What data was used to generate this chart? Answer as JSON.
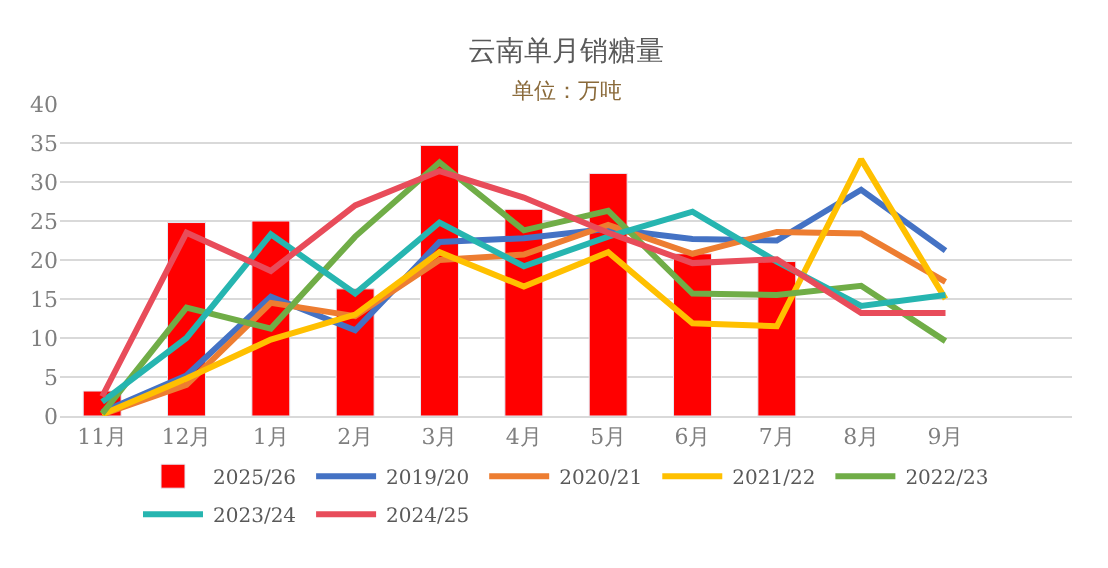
{
  "chart_data": {
    "type": "line",
    "title": "云南单月销糖量",
    "subtitle": "单位：万吨",
    "categories": [
      "11月",
      "12月",
      "1月",
      "2月",
      "3月",
      "4月",
      "5月",
      "6月",
      "7月",
      "8月",
      "9月",
      null
    ],
    "series": [
      {
        "name": "2025/26",
        "type": "bar",
        "color": "#ff0000",
        "values": [
          3.2,
          24.8,
          25.0,
          16.3,
          34.7,
          26.5,
          31.1,
          20.8,
          19.8,
          null,
          null,
          null
        ]
      },
      {
        "name": "2019/20",
        "color": "#4472c4",
        "values": [
          0.5,
          5.2,
          15.3,
          11.0,
          22.3,
          22.8,
          24.0,
          22.7,
          22.5,
          29.0,
          21.2,
          null
        ]
      },
      {
        "name": "2020/21",
        "color": "#ed7d31",
        "values": [
          0.2,
          4.0,
          14.5,
          12.8,
          20.0,
          20.7,
          24.5,
          20.8,
          23.6,
          23.4,
          17.2,
          null
        ]
      },
      {
        "name": "2021/22",
        "color": "#ffc000",
        "values": [
          0.2,
          4.8,
          9.8,
          13.0,
          21.0,
          16.6,
          21.0,
          11.9,
          11.5,
          32.9,
          15.0,
          null
        ]
      },
      {
        "name": "2022/23",
        "color": "#70ad47",
        "values": [
          0.3,
          13.9,
          11.2,
          23.0,
          32.5,
          23.8,
          26.3,
          15.7,
          15.5,
          16.7,
          9.6,
          null
        ]
      },
      {
        "name": "2023/24",
        "color": "#26b5b0",
        "values": [
          1.8,
          10.0,
          23.3,
          15.7,
          24.8,
          19.2,
          23.0,
          26.2,
          19.8,
          14.1,
          15.5,
          null
        ]
      },
      {
        "name": "2024/25",
        "color": "#e84c5a",
        "values": [
          2.5,
          23.5,
          18.6,
          27.0,
          31.4,
          28.0,
          23.5,
          19.6,
          20.1,
          13.2,
          13.2,
          null
        ]
      }
    ],
    "ylim": [
      0,
      40
    ],
    "yticks": [
      0,
      5,
      10,
      15,
      20,
      25,
      30,
      35,
      40
    ],
    "grid": "y",
    "legend": "bottom",
    "marker": "none",
    "line_style": "solid"
  }
}
